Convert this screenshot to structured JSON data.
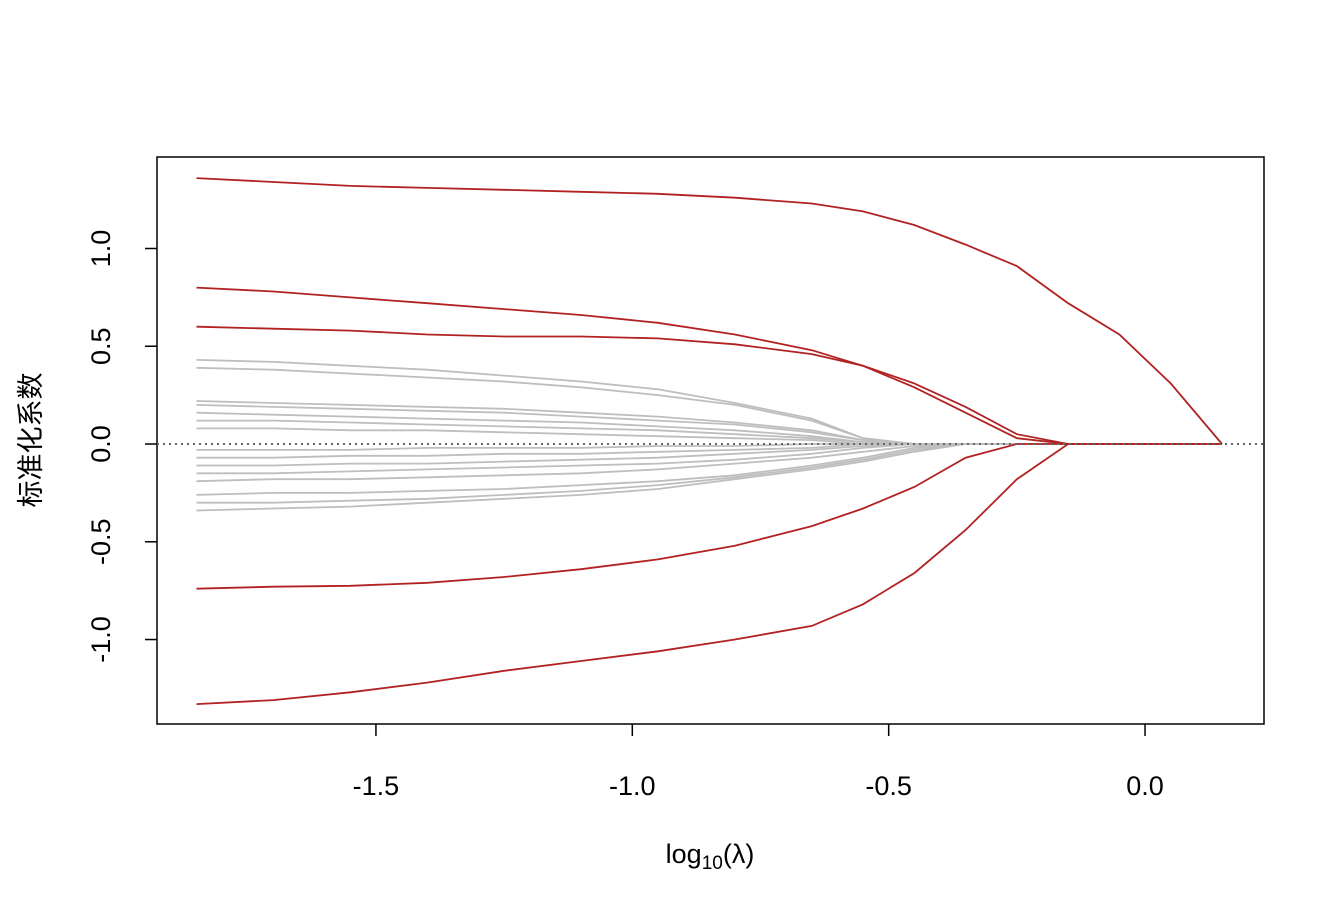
{
  "chart_data": {
    "type": "line",
    "ylabel": "标准化系数",
    "xlabel": [
      "log",
      "10",
      "(λ)"
    ],
    "xlim": [
      -1.927,
      0.232
    ],
    "ylim": [
      -1.432,
      1.468
    ],
    "xticks": [
      {
        "value": -1.5,
        "label": "-1.5"
      },
      {
        "value": -1.0,
        "label": "-1.0"
      },
      {
        "value": -0.5,
        "label": "-0.5"
      },
      {
        "value": 0.0,
        "label": "0.0"
      }
    ],
    "yticks": [
      {
        "value": -1.0,
        "label": "-1.0"
      },
      {
        "value": -0.5,
        "label": "-0.5"
      },
      {
        "value": 0.0,
        "label": "0.0"
      },
      {
        "value": 0.5,
        "label": "0.5"
      },
      {
        "value": 1.0,
        "label": "1.0"
      }
    ],
    "reference_line": 0,
    "x": [
      -1.85,
      -1.7,
      -1.55,
      -1.4,
      -1.25,
      -1.1,
      -0.95,
      -0.8,
      -0.65,
      -0.55,
      -0.45,
      -0.35,
      -0.25,
      -0.15,
      -0.05,
      0.05,
      0.15
    ],
    "series": [
      {
        "color": "#bebebe",
        "values": [
          0.43,
          0.42,
          0.4,
          0.38,
          0.35,
          0.32,
          0.28,
          0.21,
          0.13,
          0.03,
          0,
          0,
          0,
          0,
          0,
          0,
          0
        ]
      },
      {
        "color": "#bebebe",
        "values": [
          0.39,
          0.38,
          0.36,
          0.34,
          0.32,
          0.29,
          0.25,
          0.2,
          0.12,
          0.03,
          0,
          0,
          0,
          0,
          0,
          0,
          0
        ]
      },
      {
        "color": "#bebebe",
        "values": [
          0.22,
          0.21,
          0.2,
          0.19,
          0.18,
          0.16,
          0.14,
          0.11,
          0.07,
          0.02,
          0,
          0,
          0,
          0,
          0,
          0,
          0
        ]
      },
      {
        "color": "#bebebe",
        "values": [
          0.2,
          0.19,
          0.18,
          0.17,
          0.16,
          0.14,
          0.12,
          0.1,
          0.06,
          0.02,
          0,
          0,
          0,
          0,
          0,
          0,
          0
        ]
      },
      {
        "color": "#bebebe",
        "values": [
          0.16,
          0.15,
          0.14,
          0.13,
          0.12,
          0.11,
          0.09,
          0.07,
          0.04,
          0.01,
          0,
          0,
          0,
          0,
          0,
          0,
          0
        ]
      },
      {
        "color": "#bebebe",
        "values": [
          0.12,
          0.12,
          0.11,
          0.1,
          0.09,
          0.08,
          0.07,
          0.05,
          0.03,
          0.01,
          0,
          0,
          0,
          0,
          0,
          0,
          0
        ]
      },
      {
        "color": "#bebebe",
        "values": [
          0.08,
          0.08,
          0.07,
          0.07,
          0.06,
          0.05,
          0.04,
          0.03,
          0.02,
          0,
          0,
          0,
          0,
          0,
          0,
          0,
          0
        ]
      },
      {
        "color": "#bebebe",
        "values": [
          -0.03,
          -0.03,
          -0.03,
          -0.02,
          -0.02,
          -0.02,
          -0.01,
          -0.01,
          0,
          0,
          0,
          0,
          0,
          0,
          0,
          0,
          0
        ]
      },
      {
        "color": "#bebebe",
        "values": [
          -0.07,
          -0.07,
          -0.06,
          -0.06,
          -0.05,
          -0.05,
          -0.04,
          -0.03,
          -0.02,
          0,
          0,
          0,
          0,
          0,
          0,
          0,
          0
        ]
      },
      {
        "color": "#bebebe",
        "values": [
          -0.11,
          -0.11,
          -0.1,
          -0.1,
          -0.09,
          -0.08,
          -0.07,
          -0.05,
          -0.03,
          -0.01,
          0,
          0,
          0,
          0,
          0,
          0,
          0
        ]
      },
      {
        "color": "#bebebe",
        "values": [
          -0.15,
          -0.15,
          -0.14,
          -0.13,
          -0.12,
          -0.11,
          -0.1,
          -0.08,
          -0.05,
          -0.02,
          0,
          0,
          0,
          0,
          0,
          0,
          0
        ]
      },
      {
        "color": "#bebebe",
        "values": [
          -0.19,
          -0.18,
          -0.18,
          -0.17,
          -0.16,
          -0.15,
          -0.13,
          -0.1,
          -0.07,
          -0.04,
          -0.01,
          0,
          0,
          0,
          0,
          0,
          0
        ]
      },
      {
        "color": "#bebebe",
        "values": [
          -0.26,
          -0.25,
          -0.25,
          -0.24,
          -0.23,
          -0.21,
          -0.19,
          -0.16,
          -0.11,
          -0.07,
          -0.02,
          0,
          0,
          0,
          0,
          0,
          0
        ]
      },
      {
        "color": "#bebebe",
        "values": [
          -0.3,
          -0.3,
          -0.29,
          -0.28,
          -0.26,
          -0.24,
          -0.21,
          -0.17,
          -0.12,
          -0.08,
          -0.03,
          0,
          0,
          0,
          0,
          0,
          0
        ]
      },
      {
        "color": "#bebebe",
        "values": [
          -0.34,
          -0.33,
          -0.32,
          -0.3,
          -0.28,
          -0.26,
          -0.23,
          -0.18,
          -0.13,
          -0.09,
          -0.04,
          0,
          0,
          0,
          0,
          0,
          0
        ]
      },
      {
        "color": "#b22222",
        "values": [
          1.36,
          1.34,
          1.32,
          1.31,
          1.3,
          1.29,
          1.28,
          1.26,
          1.23,
          1.19,
          1.12,
          1.02,
          0.91,
          0.72,
          0.56,
          0.31,
          0
        ]
      },
      {
        "color": "#b22222",
        "values": [
          0.8,
          0.78,
          0.75,
          0.72,
          0.69,
          0.66,
          0.62,
          0.56,
          0.48,
          0.4,
          0.29,
          0.16,
          0.03,
          0,
          0,
          0,
          0
        ]
      },
      {
        "color": "#b22222",
        "values": [
          0.6,
          0.59,
          0.58,
          0.56,
          0.55,
          0.55,
          0.54,
          0.51,
          0.46,
          0.4,
          0.31,
          0.19,
          0.05,
          0,
          0,
          0,
          0
        ]
      },
      {
        "color": "#b22222",
        "values": [
          -0.74,
          -0.73,
          -0.725,
          -0.71,
          -0.68,
          -0.64,
          -0.59,
          -0.52,
          -0.42,
          -0.33,
          -0.22,
          -0.07,
          0,
          0,
          0,
          0,
          0
        ]
      },
      {
        "color": "#b22222",
        "values": [
          -1.33,
          -1.31,
          -1.27,
          -1.22,
          -1.16,
          -1.11,
          -1.06,
          -1.0,
          -0.93,
          -0.82,
          -0.66,
          -0.44,
          -0.18,
          0,
          0,
          0,
          0
        ]
      }
    ]
  }
}
